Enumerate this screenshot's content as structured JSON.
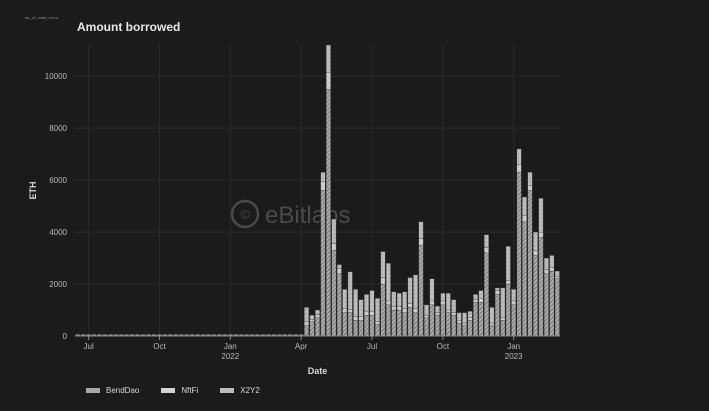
{
  "caption": "as_of_date_xxxx",
  "title": "Amount borrowed",
  "watermark": "eBitlabs",
  "colors": {
    "background": "#1b1b1b",
    "grid": "#2a2a2a",
    "axis": "#8a8a8a",
    "BendDao": "#a8a8a8",
    "NftFi": "#d2d2d2",
    "X2Y2": "#bcbcbc"
  },
  "chart_data": {
    "type": "bar",
    "stacked": true,
    "xlabel": "Date",
    "ylabel": "ETH",
    "ylim": [
      0,
      11200
    ],
    "yticks": [
      0,
      2000,
      4000,
      6000,
      8000,
      10000
    ],
    "yticklabels": [
      "0",
      "2000",
      "4000",
      "6000",
      "8000",
      "10000"
    ],
    "xticks": [
      {
        "label": "Jul",
        "sub": "",
        "index": 2
      },
      {
        "label": "Oct",
        "sub": "",
        "index": 15
      },
      {
        "label": "Jan",
        "sub": "2022",
        "index": 28
      },
      {
        "label": "Apr",
        "sub": "",
        "index": 41
      },
      {
        "label": "Jul",
        "sub": "",
        "index": 54
      },
      {
        "label": "Oct",
        "sub": "",
        "index": 67
      },
      {
        "label": "Jan",
        "sub": "2023",
        "index": 80
      }
    ],
    "grid": true,
    "legend_position": "bottom-left",
    "series": [
      {
        "name": "BendDao",
        "values": [
          0,
          0,
          0,
          0,
          0,
          0,
          0,
          0,
          0,
          0,
          0,
          0,
          0,
          0,
          0,
          0,
          0,
          0,
          0,
          0,
          0,
          0,
          0,
          0,
          0,
          0,
          0,
          0,
          0,
          0,
          0,
          0,
          0,
          0,
          0,
          0,
          0,
          0,
          0,
          0,
          0,
          0,
          400,
          550,
          700,
          5600,
          9500,
          3300,
          2400,
          900,
          900,
          600,
          600,
          800,
          800,
          450,
          2000,
          1200,
          1000,
          1000,
          900,
          1100,
          900,
          3500,
          700,
          1200,
          800,
          1200,
          900,
          800,
          500,
          400,
          600,
          1300,
          1300,
          3200,
          400,
          1600,
          600,
          2000,
          1200,
          6300,
          4400,
          5600,
          3100,
          3800,
          2400,
          2500,
          2200
        ]
      },
      {
        "name": "NftFi",
        "values": [
          0,
          0,
          0,
          0,
          0,
          0,
          0,
          0,
          0,
          0,
          0,
          0,
          0,
          0,
          0,
          0,
          0,
          0,
          0,
          0,
          0,
          0,
          0,
          0,
          0,
          0,
          0,
          0,
          0,
          0,
          0,
          0,
          0,
          0,
          0,
          0,
          0,
          0,
          0,
          0,
          0,
          0,
          150,
          80,
          120,
          350,
          650,
          250,
          200,
          150,
          120,
          150,
          150,
          150,
          150,
          100,
          250,
          150,
          150,
          150,
          150,
          150,
          150,
          250,
          100,
          150,
          100,
          150,
          100,
          100,
          100,
          100,
          100,
          100,
          150,
          200,
          100,
          150,
          100,
          150,
          150,
          300,
          250,
          200,
          200,
          200,
          150,
          150,
          100
        ]
      },
      {
        "name": "X2Y2",
        "values": [
          0,
          0,
          0,
          0,
          0,
          0,
          0,
          0,
          0,
          0,
          0,
          0,
          0,
          0,
          0,
          0,
          0,
          0,
          0,
          0,
          0,
          0,
          0,
          0,
          0,
          0,
          0,
          0,
          0,
          0,
          0,
          0,
          0,
          0,
          0,
          0,
          0,
          0,
          0,
          0,
          0,
          0,
          550,
          170,
          180,
          350,
          1050,
          950,
          150,
          750,
          1450,
          1050,
          650,
          650,
          800,
          900,
          1000,
          1450,
          550,
          500,
          650,
          1000,
          1300,
          650,
          400,
          850,
          250,
          300,
          650,
          500,
          300,
          400,
          250,
          200,
          300,
          500,
          600,
          100,
          1150,
          1300,
          450,
          600,
          700,
          500,
          700,
          1300,
          450,
          450,
          200
        ]
      }
    ]
  },
  "legend": [
    "BendDao",
    "NftFi",
    "X2Y2"
  ]
}
